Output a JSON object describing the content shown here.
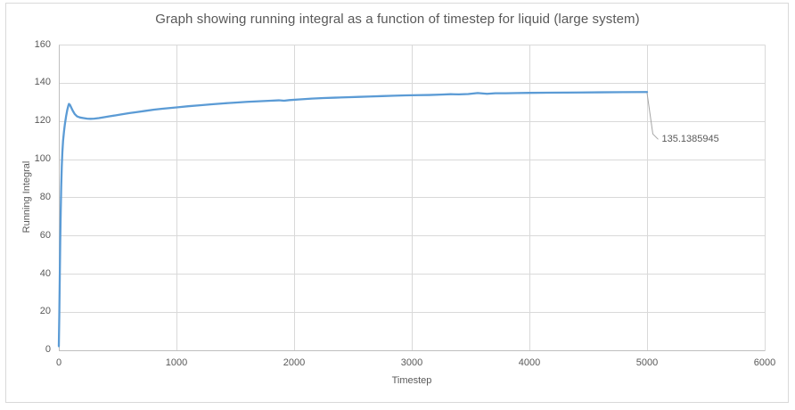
{
  "chart_data": {
    "type": "line",
    "title": "Graph showing running integral as a function of timestep for liquid (large system)",
    "xlabel": "Timestep",
    "ylabel": "Running Integral",
    "xlim": [
      0,
      6000
    ],
    "ylim": [
      0,
      160
    ],
    "x_ticks": [
      0,
      1000,
      2000,
      3000,
      4000,
      5000,
      6000
    ],
    "y_ticks": [
      0,
      20,
      40,
      60,
      80,
      100,
      120,
      140,
      160
    ],
    "grid": true,
    "legend": false,
    "series": [
      {
        "name": "running-integral",
        "color": "#5b9bd5",
        "points": [
          [
            0,
            2
          ],
          [
            4,
            18
          ],
          [
            8,
            38
          ],
          [
            12,
            57
          ],
          [
            16,
            72
          ],
          [
            20,
            85
          ],
          [
            25,
            96
          ],
          [
            30,
            103.5
          ],
          [
            36,
            109.5
          ],
          [
            44,
            114.5
          ],
          [
            52,
            118.5
          ],
          [
            62,
            122.5
          ],
          [
            72,
            125.8
          ],
          [
            80,
            127.8
          ],
          [
            86,
            128.9
          ],
          [
            94,
            128.5
          ],
          [
            104,
            127.2
          ],
          [
            118,
            125.4
          ],
          [
            135,
            123.6
          ],
          [
            155,
            122.4
          ],
          [
            180,
            121.8
          ],
          [
            210,
            121.5
          ],
          [
            240,
            121.2
          ],
          [
            270,
            121.1
          ],
          [
            300,
            121.2
          ],
          [
            340,
            121.5
          ],
          [
            380,
            121.9
          ],
          [
            430,
            122.4
          ],
          [
            480,
            122.9
          ],
          [
            530,
            123.4
          ],
          [
            600,
            124.1
          ],
          [
            670,
            124.7
          ],
          [
            740,
            125.3
          ],
          [
            810,
            125.9
          ],
          [
            880,
            126.4
          ],
          [
            950,
            126.8
          ],
          [
            1020,
            127.2
          ],
          [
            1100,
            127.7
          ],
          [
            1200,
            128.2
          ],
          [
            1300,
            128.7
          ],
          [
            1400,
            129.2
          ],
          [
            1500,
            129.6
          ],
          [
            1600,
            130.0
          ],
          [
            1700,
            130.3
          ],
          [
            1800,
            130.6
          ],
          [
            1870,
            130.8
          ],
          [
            1915,
            130.6
          ],
          [
            1960,
            130.9
          ],
          [
            2050,
            131.3
          ],
          [
            2150,
            131.7
          ],
          [
            2250,
            132.0
          ],
          [
            2350,
            132.2
          ],
          [
            2450,
            132.4
          ],
          [
            2550,
            132.6
          ],
          [
            2650,
            132.8
          ],
          [
            2750,
            133.0
          ],
          [
            2850,
            133.2
          ],
          [
            2950,
            133.4
          ],
          [
            3050,
            133.5
          ],
          [
            3150,
            133.6
          ],
          [
            3250,
            133.8
          ],
          [
            3330,
            134.0
          ],
          [
            3400,
            133.9
          ],
          [
            3480,
            134.1
          ],
          [
            3560,
            134.6
          ],
          [
            3640,
            134.2
          ],
          [
            3710,
            134.5
          ],
          [
            3800,
            134.5
          ],
          [
            3900,
            134.6
          ],
          [
            4000,
            134.7
          ],
          [
            4150,
            134.8
          ],
          [
            4300,
            134.85
          ],
          [
            4450,
            134.9
          ],
          [
            4600,
            135.0
          ],
          [
            4800,
            135.07
          ],
          [
            5000,
            135.1385945
          ]
        ]
      }
    ],
    "annotation": {
      "label": "135.1385945",
      "attach_x": 5000,
      "attach_y": 135.1385945
    }
  },
  "colors": {
    "line": "#5b9bd5",
    "grid": "#d9d9d9",
    "axis": "#bfbfbf",
    "frame_border": "#d9d9d9",
    "text": "#595959",
    "leader": "#a6a6a6"
  }
}
